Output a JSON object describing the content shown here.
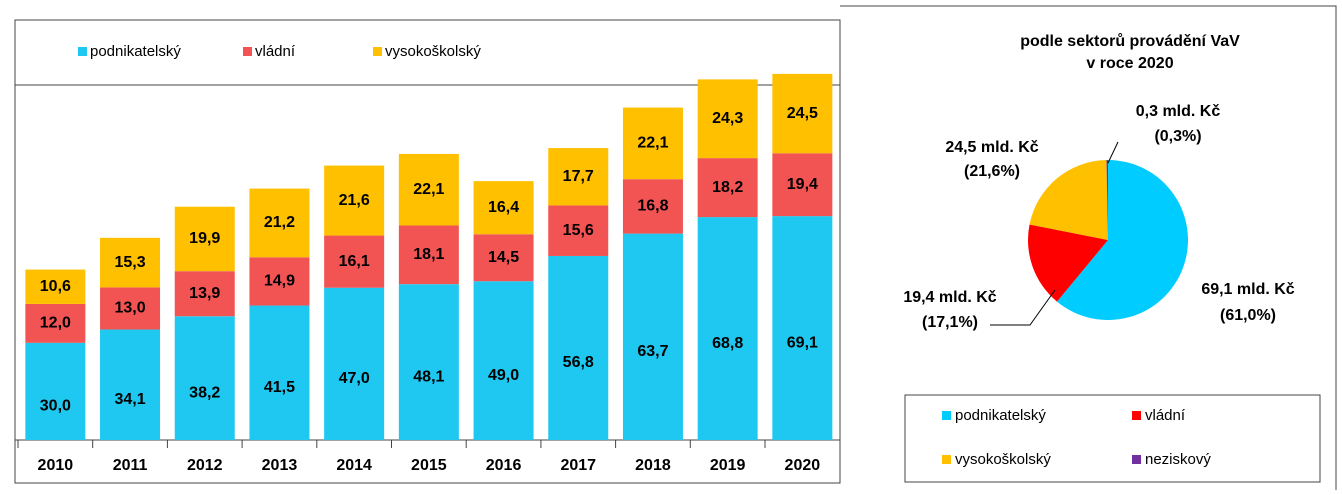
{
  "chart_data": [
    {
      "type": "stacked_bar",
      "categories": [
        "2010",
        "2011",
        "2012",
        "2013",
        "2014",
        "2015",
        "2016",
        "2017",
        "2018",
        "2019",
        "2020"
      ],
      "series": [
        {
          "name": "podnikatelský",
          "color": "#1ec8f0",
          "values": [
            30.0,
            34.1,
            38.2,
            41.5,
            47.0,
            48.1,
            49.0,
            56.8,
            63.7,
            68.8,
            69.1
          ],
          "value_labels": [
            "30,0",
            "34,1",
            "38,2",
            "41,5",
            "47,0",
            "48,1",
            "49,0",
            "56,8",
            "63,7",
            "68,8",
            "69,1"
          ]
        },
        {
          "name": "vládní",
          "color": "#f25454",
          "values": [
            12.0,
            13.0,
            13.9,
            14.9,
            16.1,
            18.1,
            14.5,
            15.6,
            16.8,
            18.2,
            19.4
          ],
          "value_labels": [
            "12,0",
            "13,0",
            "13,9",
            "14,9",
            "16,1",
            "18,1",
            "14,5",
            "15,6",
            "16,8",
            "18,2",
            "19,4"
          ]
        },
        {
          "name": "vysokoškolský",
          "color": "#ffc000",
          "values": [
            10.6,
            15.3,
            19.9,
            21.2,
            21.6,
            22.1,
            16.4,
            17.7,
            22.1,
            24.3,
            24.5
          ],
          "value_labels": [
            "10,6",
            "15,3",
            "19,9",
            "21,2",
            "21,6",
            "22,1",
            "16,4",
            "17,7",
            "22,1",
            "24,3",
            "24,5"
          ]
        }
      ]
    },
    {
      "type": "pie",
      "title": [
        "podle sektorů provádění VaV",
        "v roce 2020"
      ],
      "categories": [
        "podnikatelský",
        "vládní",
        "vysokoškolský",
        "neziskový"
      ],
      "colors": [
        "#00ccff",
        "#ff0000",
        "#ffc000",
        "#7030a0"
      ],
      "values": [
        61.0,
        17.1,
        21.6,
        0.3
      ],
      "value_labels": [
        "(61,0%)",
        "(17,1%)",
        "(21,6%)",
        "(0,3%)"
      ],
      "amounts": [
        69.1,
        19.4,
        24.5,
        0.3
      ],
      "amount_labels": [
        "69,1 mld. Kč",
        "19,4 mld. Kč",
        "24,5 mld. Kč",
        "0,3 mld. Kč"
      ]
    }
  ]
}
